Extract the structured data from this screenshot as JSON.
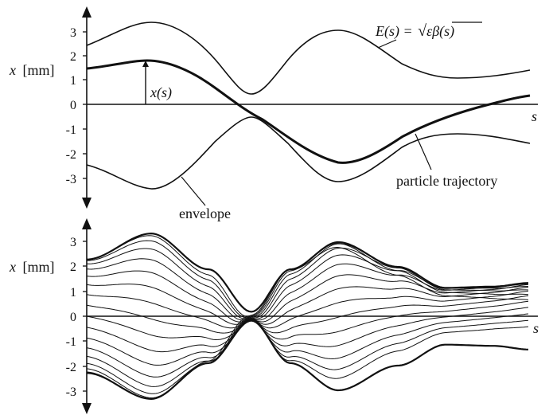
{
  "top_panel": {
    "y_label_var": "x",
    "y_label_unit": "[mm]",
    "s_label": "s",
    "y_ticks": [
      "3",
      "2",
      "1",
      "0",
      "-1",
      "-2",
      "-3"
    ],
    "envelope_label_prefix": "E(s) = ",
    "envelope_label_formula": "εβ(s)",
    "trajectory_marker_label": "x(s)",
    "trajectory_label": "particle trajectory",
    "lower_envelope_label": "envelope"
  },
  "bottom_panel": {
    "y_label_var": "x",
    "y_label_unit": "[mm]",
    "s_label": "s",
    "y_ticks": [
      "3",
      "2",
      "1",
      "0",
      "-1",
      "-2",
      "-3"
    ]
  },
  "colors": {
    "line": "#111111",
    "background": "#ffffff"
  }
}
